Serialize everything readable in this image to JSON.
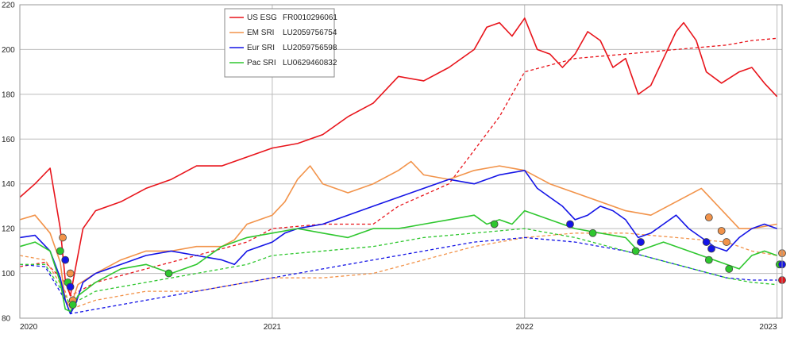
{
  "chart_data": {
    "type": "line",
    "title": "",
    "xlabel": "",
    "ylabel": "",
    "xlim": [
      2020.0,
      2023.02
    ],
    "ylim": [
      80,
      220
    ],
    "x_ticks": [
      2020,
      2021,
      2022,
      2023
    ],
    "x_tick_labels": [
      "2020",
      "2021",
      "2022",
      "2023"
    ],
    "y_ticks": [
      80,
      100,
      120,
      140,
      160,
      180,
      200,
      220
    ],
    "y_tick_labels": [
      "80",
      "100",
      "120",
      "140",
      "160",
      "180",
      "200",
      "220"
    ],
    "grid": true,
    "legend_position": "top-left",
    "colors": {
      "us": "#e8141b",
      "em": "#f2934a",
      "eur": "#1414e6",
      "pac": "#2ec72e",
      "grid": "#bbbbbb"
    },
    "series": [
      {
        "name": "US ESG",
        "code": "FR0010296061",
        "color": "#e8141b",
        "x": [
          2020.0,
          2020.06,
          2020.12,
          2020.16,
          2020.18,
          2020.2,
          2020.22,
          2020.25,
          2020.3,
          2020.4,
          2020.5,
          2020.6,
          2020.7,
          2020.8,
          2020.9,
          2021.0,
          2021.1,
          2021.2,
          2021.3,
          2021.4,
          2021.5,
          2021.6,
          2021.7,
          2021.8,
          2021.85,
          2021.9,
          2021.95,
          2022.0,
          2022.05,
          2022.1,
          2022.15,
          2022.2,
          2022.25,
          2022.3,
          2022.35,
          2022.4,
          2022.45,
          2022.5,
          2022.55,
          2022.6,
          2022.63,
          2022.68,
          2022.72,
          2022.78,
          2022.85,
          2022.9,
          2022.95,
          2023.0
        ],
        "y": [
          134,
          140,
          147,
          120,
          97,
          90,
          102,
          120,
          128,
          132,
          138,
          142,
          148,
          148,
          152,
          156,
          158,
          162,
          170,
          176,
          188,
          186,
          192,
          200,
          210,
          212,
          206,
          214,
          200,
          198,
          192,
          198,
          208,
          204,
          192,
          196,
          180,
          184,
          196,
          208,
          212,
          204,
          190,
          185,
          190,
          192,
          185,
          179
        ]
      },
      {
        "name": "EM SRI",
        "code": "LU2059756754",
        "color": "#f2934a",
        "x": [
          2020.0,
          2020.06,
          2020.12,
          2020.16,
          2020.18,
          2020.2,
          2020.23,
          2020.3,
          2020.4,
          2020.5,
          2020.6,
          2020.7,
          2020.8,
          2020.85,
          2020.9,
          2021.0,
          2021.05,
          2021.1,
          2021.15,
          2021.2,
          2021.3,
          2021.4,
          2021.5,
          2021.55,
          2021.6,
          2021.7,
          2021.8,
          2021.9,
          2022.0,
          2022.1,
          2022.2,
          2022.3,
          2022.4,
          2022.5,
          2022.6,
          2022.7,
          2022.75,
          2022.8,
          2022.85,
          2022.9,
          2022.95,
          2023.0
        ],
        "y": [
          124,
          126,
          118,
          105,
          88,
          85,
          95,
          100,
          106,
          110,
          110,
          112,
          112,
          115,
          122,
          126,
          132,
          142,
          148,
          140,
          136,
          140,
          146,
          150,
          144,
          142,
          146,
          148,
          146,
          140,
          136,
          132,
          128,
          126,
          132,
          138,
          132,
          126,
          120,
          120,
          121,
          122
        ]
      },
      {
        "name": "Eur SRI",
        "code": "LU2059756598",
        "color": "#1414e6",
        "x": [
          2020.0,
          2020.06,
          2020.12,
          2020.16,
          2020.18,
          2020.2,
          2020.22,
          2020.25,
          2020.3,
          2020.4,
          2020.5,
          2020.6,
          2020.7,
          2020.8,
          2020.85,
          2020.9,
          2021.0,
          2021.05,
          2021.1,
          2021.2,
          2021.3,
          2021.4,
          2021.5,
          2021.6,
          2021.7,
          2021.8,
          2021.9,
          2022.0,
          2022.05,
          2022.1,
          2022.15,
          2022.2,
          2022.25,
          2022.3,
          2022.35,
          2022.4,
          2022.45,
          2022.5,
          2022.55,
          2022.6,
          2022.65,
          2022.7,
          2022.75,
          2022.8,
          2022.85,
          2022.9,
          2022.95,
          2023.0
        ],
        "y": [
          116,
          117,
          110,
          98,
          88,
          82,
          86,
          96,
          100,
          104,
          108,
          110,
          108,
          106,
          104,
          110,
          114,
          118,
          120,
          122,
          126,
          130,
          134,
          138,
          142,
          140,
          144,
          146,
          138,
          134,
          130,
          124,
          126,
          130,
          128,
          124,
          116,
          118,
          122,
          126,
          120,
          116,
          112,
          110,
          116,
          120,
          122,
          120
        ]
      },
      {
        "name": "Pac SRI",
        "code": "LU0629460832",
        "color": "#2ec72e",
        "x": [
          2020.0,
          2020.06,
          2020.12,
          2020.16,
          2020.18,
          2020.2,
          2020.23,
          2020.3,
          2020.4,
          2020.5,
          2020.6,
          2020.7,
          2020.8,
          2020.9,
          2021.0,
          2021.1,
          2021.2,
          2021.3,
          2021.4,
          2021.5,
          2021.6,
          2021.7,
          2021.8,
          2021.85,
          2021.9,
          2021.95,
          2022.0,
          2022.1,
          2022.2,
          2022.3,
          2022.4,
          2022.45,
          2022.5,
          2022.55,
          2022.6,
          2022.7,
          2022.75,
          2022.8,
          2022.85,
          2022.9,
          2022.95,
          2023.0
        ],
        "y": [
          112,
          114,
          110,
          96,
          84,
          83,
          90,
          96,
          102,
          104,
          100,
          104,
          112,
          116,
          118,
          120,
          118,
          116,
          120,
          120,
          122,
          124,
          126,
          122,
          124,
          122,
          128,
          124,
          120,
          118,
          116,
          110,
          112,
          114,
          112,
          108,
          106,
          104,
          102,
          108,
          110,
          108
        ]
      }
    ],
    "reference_series": [
      {
        "name": "US ESG",
        "color": "#e8141b",
        "x": [
          2020.0,
          2020.1,
          2020.18,
          2020.2,
          2020.3,
          2020.5,
          2020.7,
          2020.9,
          2021.0,
          2021.2,
          2021.3,
          2021.4,
          2021.5,
          2021.7,
          2021.9,
          2022.0,
          2022.2,
          2022.4,
          2022.6,
          2022.8,
          2022.9,
          2023.0
        ],
        "y": [
          103,
          105,
          96,
          90,
          96,
          102,
          108,
          114,
          120,
          122,
          122,
          122,
          130,
          140,
          170,
          190,
          196,
          198,
          200,
          202,
          204,
          205
        ]
      },
      {
        "name": "EM SRI",
        "color": "#f2934a",
        "x": [
          2020.0,
          2020.1,
          2020.18,
          2020.2,
          2020.3,
          2020.5,
          2020.7,
          2020.9,
          2021.0,
          2021.2,
          2021.4,
          2021.6,
          2021.8,
          2022.0,
          2022.2,
          2022.4,
          2022.6,
          2022.8,
          2022.9,
          2023.0
        ],
        "y": [
          108,
          106,
          92,
          84,
          88,
          92,
          92,
          96,
          98,
          98,
          100,
          106,
          112,
          116,
          118,
          118,
          116,
          114,
          110,
          108
        ]
      },
      {
        "name": "Eur SRI",
        "color": "#1414e6",
        "x": [
          2020.0,
          2020.1,
          2020.18,
          2020.2,
          2020.3,
          2020.5,
          2020.7,
          2020.9,
          2021.0,
          2021.2,
          2021.4,
          2021.6,
          2021.8,
          2022.0,
          2022.2,
          2022.4,
          2022.6,
          2022.8,
          2022.9,
          2023.0
        ],
        "y": [
          104,
          103,
          88,
          82,
          84,
          88,
          92,
          96,
          98,
          102,
          106,
          110,
          114,
          116,
          114,
          110,
          104,
          98,
          97,
          97
        ]
      },
      {
        "name": "Pac SRI",
        "color": "#2ec72e",
        "x": [
          2020.0,
          2020.1,
          2020.18,
          2020.2,
          2020.3,
          2020.5,
          2020.7,
          2020.9,
          2021.0,
          2021.2,
          2021.4,
          2021.6,
          2021.8,
          2022.0,
          2022.2,
          2022.4,
          2022.6,
          2022.8,
          2022.9,
          2023.0
        ],
        "y": [
          104,
          104,
          90,
          86,
          92,
          96,
          100,
          104,
          108,
          110,
          112,
          116,
          118,
          120,
          116,
          110,
          104,
          98,
          96,
          95
        ]
      }
    ],
    "markers": [
      {
        "series": "EM SRI",
        "color": "#f2934a",
        "x": 2020.17,
        "y": 116
      },
      {
        "series": "Pac SRI",
        "color": "#2ec72e",
        "x": 2020.16,
        "y": 110
      },
      {
        "series": "Eur SRI",
        "color": "#1414e6",
        "x": 2020.18,
        "y": 106
      },
      {
        "series": "EM SRI",
        "color": "#f2934a",
        "x": 2020.2,
        "y": 100
      },
      {
        "series": "Pac SRI",
        "color": "#2ec72e",
        "x": 2020.19,
        "y": 96
      },
      {
        "series": "Eur SRI",
        "color": "#1414e6",
        "x": 2020.2,
        "y": 94
      },
      {
        "series": "EM SRI",
        "color": "#f2934a",
        "x": 2020.21,
        "y": 88
      },
      {
        "series": "Pac SRI",
        "color": "#2ec72e",
        "x": 2020.21,
        "y": 86
      },
      {
        "series": "Pac SRI",
        "color": "#2ec72e",
        "x": 2020.59,
        "y": 100
      },
      {
        "series": "Pac SRI",
        "color": "#2ec72e",
        "x": 2021.88,
        "y": 122
      },
      {
        "series": "Eur SRI",
        "color": "#1414e6",
        "x": 2022.18,
        "y": 122
      },
      {
        "series": "Pac SRI",
        "color": "#2ec72e",
        "x": 2022.27,
        "y": 118
      },
      {
        "series": "Eur SRI",
        "color": "#1414e6",
        "x": 2022.46,
        "y": 114
      },
      {
        "series": "Pac SRI",
        "color": "#2ec72e",
        "x": 2022.44,
        "y": 110
      },
      {
        "series": "EM SRI",
        "color": "#f2934a",
        "x": 2022.73,
        "y": 125
      },
      {
        "series": "EM SRI",
        "color": "#f2934a",
        "x": 2022.78,
        "y": 119
      },
      {
        "series": "Eur SRI",
        "color": "#1414e6",
        "x": 2022.72,
        "y": 114
      },
      {
        "series": "Eur SRI",
        "color": "#1414e6",
        "x": 2022.74,
        "y": 111
      },
      {
        "series": "Pac SRI",
        "color": "#2ec72e",
        "x": 2022.73,
        "y": 106
      },
      {
        "series": "EM SRI",
        "color": "#f2934a",
        "x": 2022.8,
        "y": 114
      },
      {
        "series": "Pac SRI",
        "color": "#2ec72e",
        "x": 2022.81,
        "y": 102
      },
      {
        "series": "Pac SRI",
        "color": "#2ec72e",
        "x": 2023.01,
        "y": 104
      },
      {
        "series": "Eur SRI",
        "color": "#1414e6",
        "x": 2023.02,
        "y": 104
      },
      {
        "series": "EM SRI",
        "color": "#f2934a",
        "x": 2023.02,
        "y": 109
      },
      {
        "series": "US ESG",
        "color": "#e8141b",
        "x": 2023.02,
        "y": 97
      }
    ]
  }
}
